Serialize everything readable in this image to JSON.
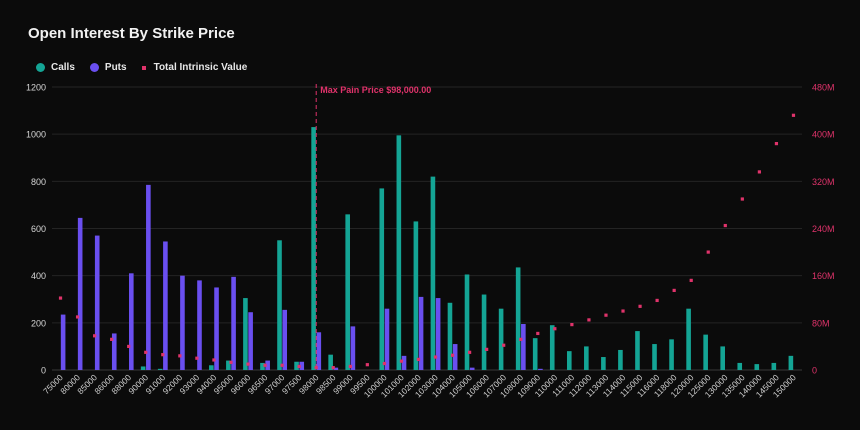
{
  "chart_data": {
    "type": "bar",
    "title": "Open Interest By Strike Price",
    "legend_placement": "top-left",
    "grid": true,
    "colors": {
      "calls": "#14a595",
      "puts": "#6a4ff0",
      "intrinsic": "#e0336b",
      "background": "#0b0b0b"
    },
    "categories": [
      "75000",
      "80000",
      "85000",
      "86000",
      "88000",
      "90000",
      "91000",
      "92000",
      "93000",
      "94000",
      "95000",
      "96000",
      "96500",
      "97000",
      "97500",
      "98000",
      "98500",
      "99000",
      "99500",
      "100000",
      "101000",
      "102000",
      "103000",
      "104000",
      "105000",
      "106000",
      "107000",
      "108000",
      "109000",
      "110000",
      "111000",
      "112000",
      "113000",
      "114000",
      "115000",
      "116000",
      "118000",
      "120000",
      "125000",
      "130000",
      "135000",
      "140000",
      "145000",
      "150000"
    ],
    "series": [
      {
        "name": "Calls",
        "axis": "left",
        "values": [
          0,
          0,
          0,
          0,
          0,
          15,
          5,
          0,
          0,
          20,
          40,
          305,
          30,
          550,
          35,
          1030,
          65,
          660,
          0,
          770,
          995,
          630,
          820,
          285,
          405,
          320,
          260,
          435,
          135,
          190,
          80,
          100,
          55,
          85,
          165,
          110,
          130,
          260,
          150,
          100,
          30,
          25,
          30,
          60
        ]
      },
      {
        "name": "Puts",
        "axis": "left",
        "values": [
          235,
          645,
          570,
          155,
          410,
          785,
          545,
          400,
          380,
          350,
          395,
          245,
          40,
          255,
          35,
          160,
          10,
          185,
          0,
          260,
          60,
          310,
          305,
          110,
          10,
          0,
          0,
          195,
          5,
          0,
          0,
          0,
          0,
          0,
          0,
          0,
          0,
          0,
          0,
          0,
          0,
          0,
          0,
          0
        ]
      },
      {
        "name": "Total Intrinsic Value",
        "axis": "right",
        "unit": "M",
        "values": [
          122,
          90,
          58,
          52,
          40,
          30,
          26,
          24,
          20,
          17,
          13,
          10,
          8,
          8,
          6,
          4,
          4,
          6,
          9,
          11,
          15,
          18,
          22,
          25,
          30,
          35,
          42,
          52,
          62,
          70,
          77,
          85,
          93,
          100,
          108,
          118,
          135,
          152,
          200,
          245,
          290,
          336,
          384,
          432
        ]
      }
    ],
    "ylim": [
      0,
      1200
    ],
    "yticks": [
      "0",
      "200",
      "400",
      "600",
      "800",
      "1000",
      "1200"
    ],
    "y2lim": [
      0,
      480
    ],
    "y2ticks": [
      "0",
      "80M",
      "160M",
      "240M",
      "320M",
      "400M",
      "480M"
    ],
    "annotation": {
      "label": "Max Pain Price $98,000.00",
      "category": "98000"
    }
  }
}
